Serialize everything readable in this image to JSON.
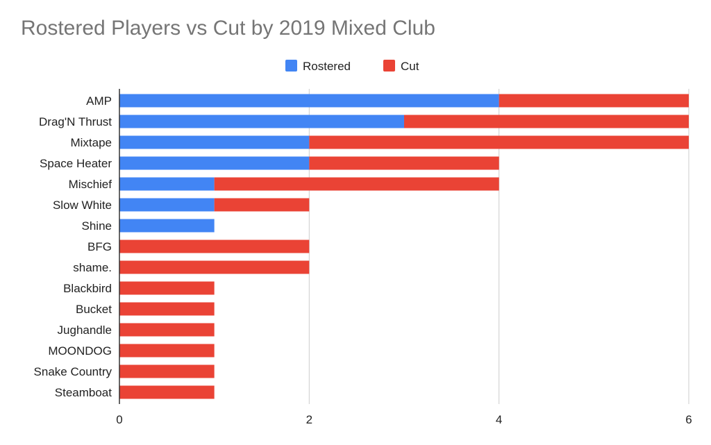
{
  "colors": {
    "rostered": "#4285f4",
    "cut": "#ea4335",
    "grid": "#cccccc",
    "axis": "#333333"
  },
  "chart_data": {
    "type": "bar",
    "orientation": "horizontal",
    "stacked": true,
    "title": "Rostered Players vs Cut by 2019 Mixed Club",
    "xlabel": "",
    "ylabel": "",
    "xlim": [
      0,
      6
    ],
    "x_ticks": [
      0,
      2,
      4,
      6
    ],
    "grid": true,
    "legend_position": "top",
    "categories": [
      "AMP",
      "Drag'N Thrust",
      "Mixtape",
      "Space Heater",
      "Mischief",
      "Slow White",
      "Shine",
      "BFG",
      "shame.",
      "Blackbird",
      "Bucket",
      "Jughandle",
      "MOONDOG",
      "Snake Country",
      "Steamboat"
    ],
    "series": [
      {
        "name": "Rostered",
        "color": "#4285f4",
        "values": [
          4,
          3,
          2,
          2,
          1,
          1,
          1,
          0,
          0,
          0,
          0,
          0,
          0,
          0,
          0
        ]
      },
      {
        "name": "Cut",
        "color": "#ea4335",
        "values": [
          2,
          3,
          4,
          2,
          3,
          1,
          0,
          2,
          2,
          1,
          1,
          1,
          1,
          1,
          1
        ]
      }
    ]
  }
}
